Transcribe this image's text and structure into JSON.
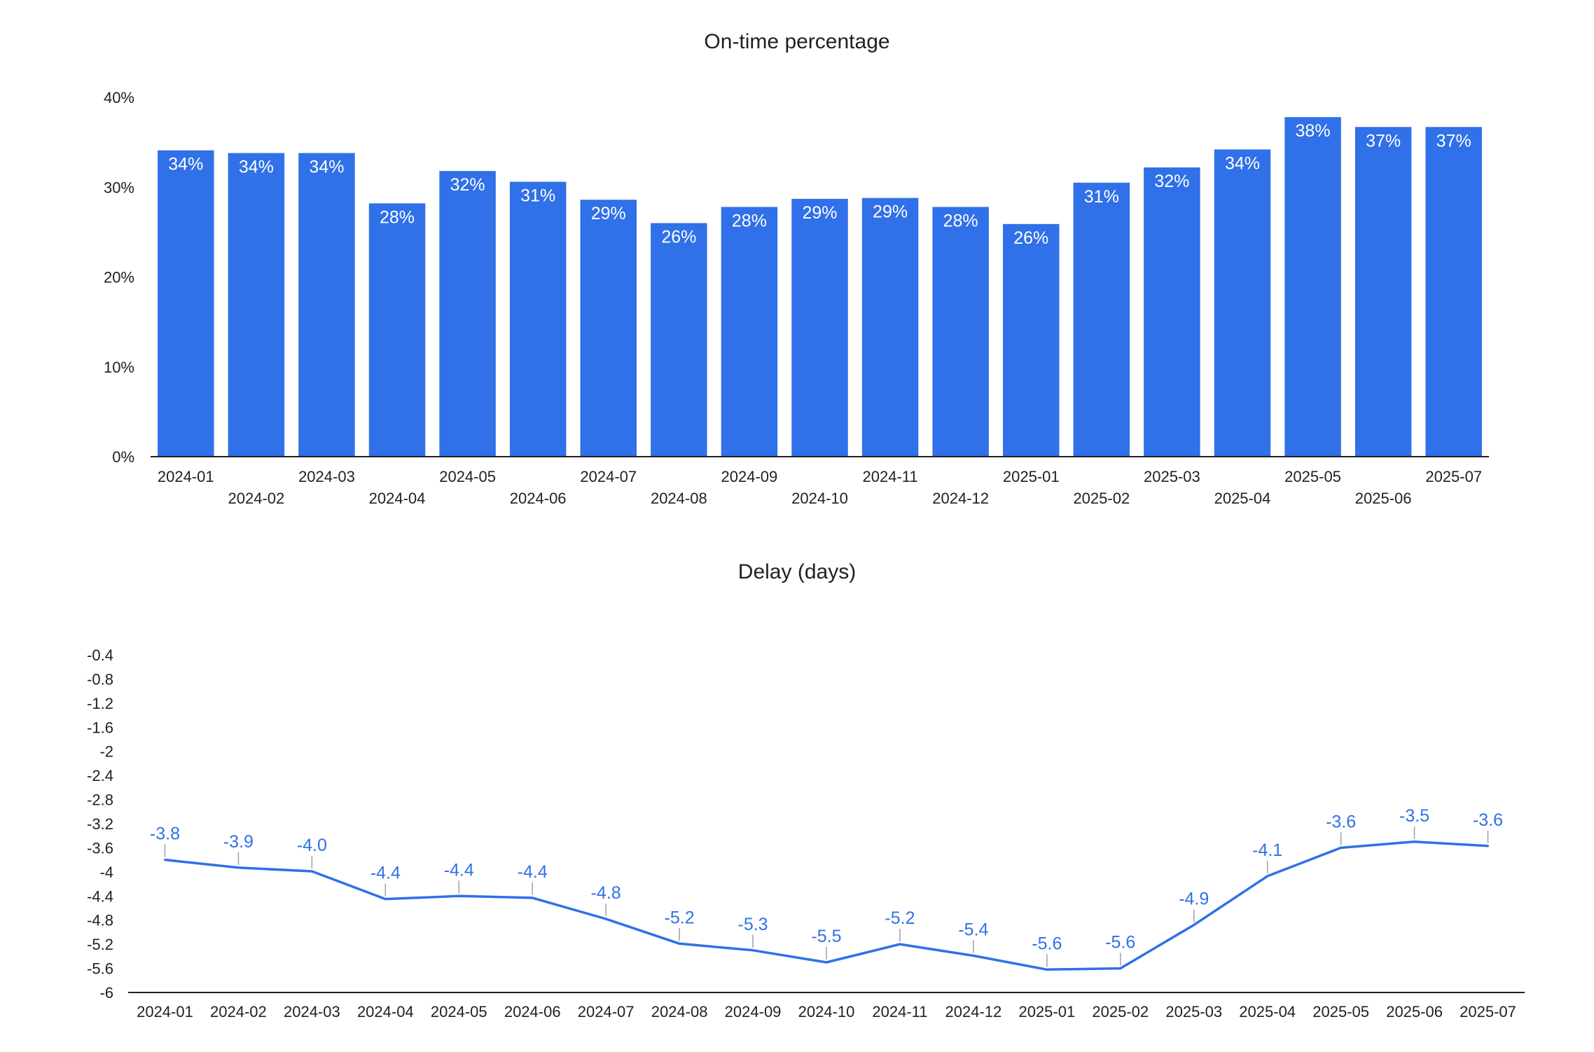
{
  "colors": {
    "series": "#3070e8",
    "axis": "#202124",
    "text": "#202124"
  },
  "chart_data": [
    {
      "type": "bar",
      "title": "On-time percentage",
      "categories": [
        "2024-01",
        "2024-02",
        "2024-03",
        "2024-04",
        "2024-05",
        "2024-06",
        "2024-07",
        "2024-08",
        "2024-09",
        "2024-10",
        "2024-11",
        "2024-12",
        "2025-01",
        "2025-02",
        "2025-03",
        "2025-04",
        "2025-05",
        "2025-06",
        "2025-07"
      ],
      "values": [
        34.1,
        33.8,
        33.8,
        28.2,
        31.8,
        30.6,
        28.6,
        26.0,
        27.8,
        28.7,
        28.8,
        27.8,
        25.9,
        30.5,
        32.2,
        34.2,
        37.8,
        36.7,
        36.7
      ],
      "data_labels": [
        "34%",
        "34%",
        "34%",
        "28%",
        "32%",
        "31%",
        "29%",
        "26%",
        "28%",
        "29%",
        "29%",
        "28%",
        "26%",
        "31%",
        "32%",
        "34%",
        "38%",
        "37%",
        "37%"
      ],
      "y_ticks": [
        0,
        10,
        20,
        30,
        40
      ],
      "y_tick_labels": [
        "0%",
        "10%",
        "20%",
        "30%",
        "40%"
      ],
      "ylim": [
        0,
        40
      ],
      "grid": false,
      "legend": "none"
    },
    {
      "type": "line",
      "title": "Delay (days)",
      "categories": [
        "2024-01",
        "2024-02",
        "2024-03",
        "2024-04",
        "2024-05",
        "2024-06",
        "2024-07",
        "2024-08",
        "2024-09",
        "2024-10",
        "2024-11",
        "2024-12",
        "2025-01",
        "2025-02",
        "2025-03",
        "2025-04",
        "2025-05",
        "2025-06",
        "2025-07"
      ],
      "values": [
        -3.8,
        -3.93,
        -3.99,
        -4.45,
        -4.4,
        -4.43,
        -4.78,
        -5.19,
        -5.3,
        -5.5,
        -5.2,
        -5.39,
        -5.62,
        -5.6,
        -4.88,
        -4.07,
        -3.6,
        -3.5,
        -3.57
      ],
      "data_labels": [
        "-3.8",
        "-3.9",
        "-4.0",
        "-4.4",
        "-4.4",
        "-4.4",
        "-4.8",
        "-5.2",
        "-5.3",
        "-5.5",
        "-5.2",
        "-5.4",
        "-5.6",
        "-5.6",
        "-4.9",
        "-4.1",
        "-3.6",
        "-3.5",
        "-3.6"
      ],
      "y_ticks": [
        -0.4,
        -0.8,
        -1.2,
        -1.6,
        -2,
        -2.4,
        -2.8,
        -3.2,
        -3.6,
        -4,
        -4.4,
        -4.8,
        -5.2,
        -5.6,
        -6
      ],
      "y_tick_labels": [
        "-0.4",
        "-0.8",
        "-1.2",
        "-1.6",
        "-2",
        "-2.4",
        "-2.8",
        "-3.2",
        "-3.6",
        "-4",
        "-4.4",
        "-4.8",
        "-5.2",
        "-5.6",
        "-6"
      ],
      "ylim": [
        -6,
        -0.4
      ],
      "grid": false,
      "legend": "none"
    }
  ]
}
